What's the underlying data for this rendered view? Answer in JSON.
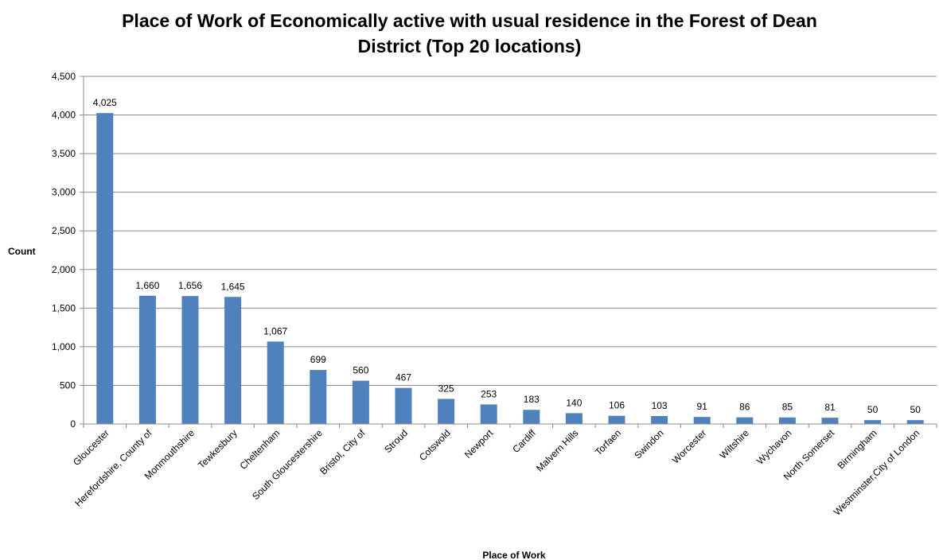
{
  "chart_data": {
    "type": "bar",
    "title_lines": [
      "Place of Work of Economically active with usual residence in the Forest of Dean",
      "District (Top 20 locations)"
    ],
    "xlabel": "Place of Work",
    "ylabel": "Count",
    "ylim": [
      0,
      4500
    ],
    "yticks": [
      0,
      500,
      1000,
      1500,
      2000,
      2500,
      3000,
      3500,
      4000,
      4500
    ],
    "ytick_labels": [
      "0",
      "500",
      "1,000",
      "1,500",
      "2,000",
      "2,500",
      "3,000",
      "3,500",
      "4,000",
      "4,500"
    ],
    "grid": true,
    "legend": "none",
    "bar_color": "#4f81bd",
    "categories": [
      "Gloucester",
      "Herefordshire, County of",
      "Monmouthshire",
      "Tewkesbury",
      "Cheltenham",
      "South Gloucestershire",
      "Bristol, City of",
      "Stroud",
      "Cotswold",
      "Newport",
      "Cardiff",
      "Malvern Hills",
      "Torfaen",
      "Swindon",
      "Worcester",
      "Wiltshire",
      "Wychavon",
      "North Somerset",
      "Birmingham",
      "Westminster,City of London"
    ],
    "values": [
      4025,
      1660,
      1656,
      1645,
      1067,
      699,
      560,
      467,
      325,
      253,
      183,
      140,
      106,
      103,
      91,
      86,
      85,
      81,
      50,
      50
    ],
    "value_labels": [
      "4,025",
      "1,660",
      "1,656",
      "1,645",
      "1,067",
      "699",
      "560",
      "467",
      "325",
      "253",
      "183",
      "140",
      "106",
      "103",
      "91",
      "86",
      "85",
      "81",
      "50",
      "50"
    ]
  }
}
